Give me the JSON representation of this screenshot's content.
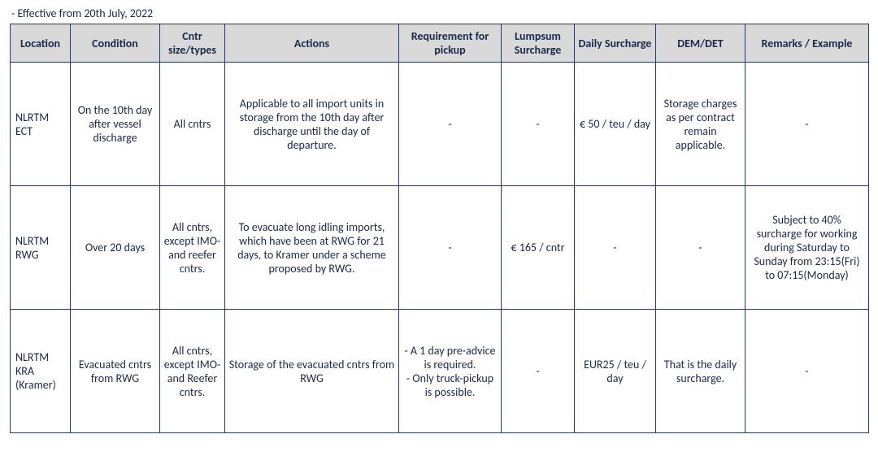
{
  "effective_text": "- Effective from 20th July, 2022",
  "table": {
    "columns": [
      "Location",
      "Condition",
      "Cntr size/types",
      "Actions",
      "Requirement for pickup",
      "Lumpsum Surcharge",
      "Daily Surcharge",
      "DEM/DET",
      "Remarks / Example"
    ],
    "rows": [
      {
        "location": "NLRTM ECT",
        "condition": "On the 10th day after vessel discharge",
        "size": "All cntrs",
        "actions": "Applicable to all import units in storage from the 10th day after discharge until the day of departure.",
        "requirement": "-",
        "lumpsum": "-",
        "daily": "€ 50 / teu / day",
        "demdet": "Storage charges as per contract remain applicable.",
        "remarks": "-"
      },
      {
        "location": "NLRTM RWG",
        "condition": "Over 20 days",
        "size": "All cntrs, except IMO- and reefer cntrs.",
        "actions": "To evacuate long idling imports, which have been at RWG for 21 days, to Kramer under a scheme proposed by RWG.",
        "requirement": "-",
        "lumpsum": "€ 165 / cntr",
        "daily": "-",
        "demdet": "-",
        "remarks": "Subject to 40% surcharge for working during Saturday to Sunday from 23:15(Fri) to 07:15(Monday)"
      },
      {
        "location": "NLRTM KRA (Kramer)",
        "condition": "Evacuated cntrs from RWG",
        "size": "All cntrs, except IMO- and Reefer cntrs.",
        "actions": "Storage of the evacuated cntrs from RWG",
        "requirement": "- A 1 day pre-advice is required.\n- Only truck-pickup is possible.",
        "lumpsum": "-",
        "daily": "EUR25 / teu / day",
        "demdet": "That is the daily surcharge.",
        "remarks": "-"
      }
    ]
  }
}
